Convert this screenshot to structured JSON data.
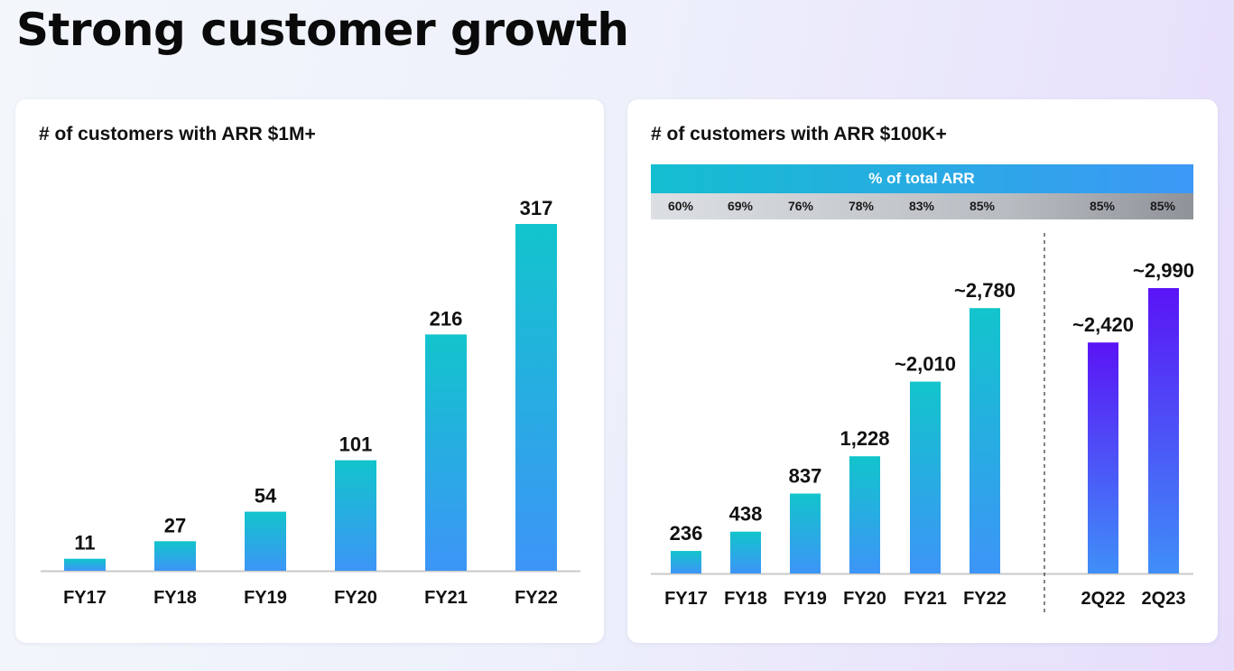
{
  "page": {
    "title": "Strong customer growth"
  },
  "colors": {
    "bar_teal_top": "#12c4cc",
    "bar_teal_bottom": "#3d95f7",
    "bar_purple_top": "#5a14f5",
    "bar_purple_bottom": "#3f8ff8",
    "pct_band_left": "#14bed0",
    "pct_band_right": "#3d98f6"
  },
  "chart_data": [
    {
      "type": "bar",
      "title": "# of customers with ARR $1M+",
      "categories": [
        "FY17",
        "FY18",
        "FY19",
        "FY20",
        "FY21",
        "FY22"
      ],
      "values": [
        11,
        27,
        54,
        101,
        216,
        317
      ],
      "value_labels": [
        "11",
        "27",
        "54",
        "101",
        "216",
        "317"
      ],
      "ylim": [
        0,
        317
      ]
    },
    {
      "type": "bar",
      "title": "# of customers with ARR $100K+",
      "header_band": {
        "label": "% of total ARR",
        "values": [
          "60%",
          "69%",
          "76%",
          "78%",
          "83%",
          "85%",
          "85%",
          "85%"
        ]
      },
      "annual": {
        "categories": [
          "FY17",
          "FY18",
          "FY19",
          "FY20",
          "FY21",
          "FY22"
        ],
        "values": [
          236,
          438,
          837,
          1228,
          2010,
          2780
        ],
        "value_labels": [
          "236",
          "438",
          "837",
          "1,228",
          "~2,010",
          "~2,780"
        ]
      },
      "quarterly": {
        "categories": [
          "2Q22",
          "2Q23"
        ],
        "values": [
          2420,
          2990
        ],
        "value_labels": [
          "~2,420",
          "~2,990"
        ]
      },
      "ylim": [
        0,
        2990
      ]
    }
  ]
}
